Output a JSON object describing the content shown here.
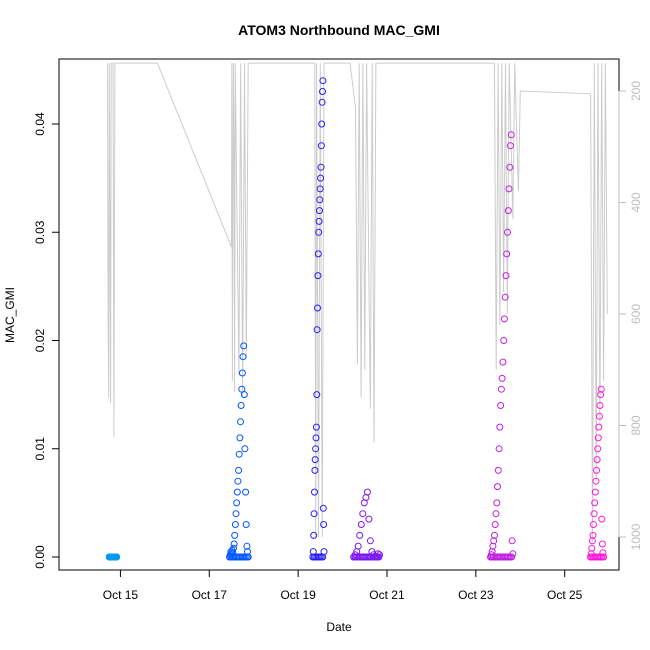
{
  "chart_data": {
    "type": "scatter",
    "title": "ATOM3 Northbound MAC_GMI",
    "xlabel": "Date",
    "ylabel": "MAC_GMI",
    "xlim": [
      "2023-10-14",
      "2023-10-26"
    ],
    "ylim": [
      0,
      0.045
    ],
    "x_ticks": [
      {
        "date": "2023-10-15",
        "label": "Oct 15"
      },
      {
        "date": "2023-10-17",
        "label": "Oct 17"
      },
      {
        "date": "2023-10-19",
        "label": "Oct 19"
      },
      {
        "date": "2023-10-21",
        "label": "Oct 21"
      },
      {
        "date": "2023-10-23",
        "label": "Oct 23"
      },
      {
        "date": "2023-10-25",
        "label": "Oct 25"
      }
    ],
    "y_ticks": [
      {
        "value": 0.0,
        "label": "0.00"
      },
      {
        "value": 0.01,
        "label": "0.01"
      },
      {
        "value": 0.02,
        "label": "0.02"
      },
      {
        "value": 0.03,
        "label": "0.03"
      },
      {
        "value": 0.04,
        "label": "0.04"
      }
    ],
    "secondary_axis": {
      "reversed": true,
      "range": [
        1050,
        150
      ],
      "ticks": [
        {
          "value": 200,
          "label": "200"
        },
        {
          "value": 400,
          "label": "400"
        },
        {
          "value": 600,
          "label": "600"
        },
        {
          "value": 800,
          "label": "800"
        },
        {
          "value": 1000,
          "label": "1000"
        }
      ],
      "color": "#bdbdbd"
    },
    "depth_trace": {
      "color": "#cccccc",
      "points": [
        [
          "2023-10-14 17:00",
          150
        ],
        [
          "2023-10-14 17:20",
          600
        ],
        [
          "2023-10-14 17:40",
          750
        ],
        [
          "2023-10-14 18:00",
          150
        ],
        [
          "2023-10-14 18:40",
          760
        ],
        [
          "2023-10-14 19:00",
          150
        ],
        [
          "2023-10-14 20:00",
          150
        ],
        [
          "2023-10-14 20:30",
          820
        ],
        [
          "2023-10-14 21:00",
          150
        ],
        [
          "2023-10-15 20:00",
          150
        ],
        [
          "2023-10-17 12:00",
          480
        ],
        [
          "2023-10-17 12:10",
          150
        ],
        [
          "2023-10-17 12:30",
          720
        ],
        [
          "2023-10-17 13:00",
          150
        ],
        [
          "2023-10-17 13:20",
          300
        ],
        [
          "2023-10-17 13:40",
          740
        ],
        [
          "2023-10-17 14:00",
          150
        ],
        [
          "2023-10-17 16:00",
          710
        ],
        [
          "2023-10-17 17:00",
          150
        ],
        [
          "2023-10-17 18:00",
          750
        ],
        [
          "2023-10-17 19:00",
          150
        ],
        [
          "2023-10-17 20:00",
          680
        ],
        [
          "2023-10-17 21:00",
          150
        ],
        [
          "2023-10-19 09:00",
          150
        ],
        [
          "2023-10-19 09:30",
          1000
        ],
        [
          "2023-10-19 10:00",
          150
        ],
        [
          "2023-10-19 11:00",
          1000
        ],
        [
          "2023-10-19 12:00",
          150
        ],
        [
          "2023-10-19 13:00",
          1000
        ],
        [
          "2023-10-19 14:00",
          150
        ],
        [
          "2023-10-20 04:00",
          150
        ],
        [
          "2023-10-20 07:00",
          230
        ],
        [
          "2023-10-20 08:00",
          690
        ],
        [
          "2023-10-20 09:00",
          150
        ],
        [
          "2023-10-20 10:00",
          750
        ],
        [
          "2023-10-20 11:00",
          150
        ],
        [
          "2023-10-20 12:00",
          700
        ],
        [
          "2023-10-20 13:00",
          150
        ],
        [
          "2023-10-20 15:00",
          770
        ],
        [
          "2023-10-20 16:00",
          150
        ],
        [
          "2023-10-20 17:00",
          830
        ],
        [
          "2023-10-20 18:00",
          150
        ],
        [
          "2023-10-23 10:00",
          150
        ],
        [
          "2023-10-23 11:00",
          700
        ],
        [
          "2023-10-23 12:00",
          150
        ],
        [
          "2023-10-23 13:00",
          620
        ],
        [
          "2023-10-23 14:00",
          150
        ],
        [
          "2023-10-23 15:00",
          560
        ],
        [
          "2023-10-23 16:00",
          150
        ],
        [
          "2023-10-23 17:00",
          600
        ],
        [
          "2023-10-23 18:00",
          150
        ],
        [
          "2023-10-23 20:00",
          430
        ],
        [
          "2023-10-23 21:00",
          150
        ],
        [
          "2023-10-23 23:00",
          380
        ],
        [
          "2023-10-24 00:00",
          200
        ],
        [
          "2023-10-25 14:00",
          205
        ],
        [
          "2023-10-25 15:00",
          1010
        ],
        [
          "2023-10-25 16:00",
          150
        ],
        [
          "2023-10-25 17:00",
          900
        ],
        [
          "2023-10-25 18:00",
          150
        ],
        [
          "2023-10-25 19:00",
          800
        ],
        [
          "2023-10-25 20:00",
          150
        ],
        [
          "2023-10-25 21:00",
          720
        ],
        [
          "2023-10-25 22:00",
          150
        ],
        [
          "2023-10-25 23:00",
          600
        ]
      ]
    },
    "series": [
      {
        "color": "#0099ee",
        "clusters": [
          {
            "start": "2023-10-14 18:00",
            "end": "2023-10-14 22:00",
            "values": [
              0.0,
              0.0,
              0.0,
              0.0,
              0.0,
              0.0,
              0.0,
              0.0,
              0.0,
              0.0,
              0.0,
              0.0,
              0.0,
              0.0,
              0.0,
              0.0
            ]
          }
        ]
      },
      {
        "color": "#0057ff",
        "clusters": [
          {
            "start": "2023-10-17 11:00",
            "end": "2023-10-17 21:00",
            "values": [
              0.0,
              0.0002,
              0.0005,
              0.0003,
              0.0006,
              0.0004,
              0.0008,
              0.0012,
              0.002,
              0.003,
              0.004,
              0.005,
              0.006,
              0.007,
              0.008,
              0.0095,
              0.011,
              0.0125,
              0.014,
              0.0155,
              0.017,
              0.0185,
              0.0195,
              0.015,
              0.01,
              0.006,
              0.003,
              0.001,
              0.0005,
              0.0
            ]
          }
        ]
      },
      {
        "color": "#2a1ff0",
        "clusters": [
          {
            "start": "2023-10-19 08:00",
            "end": "2023-10-19 14:00",
            "values": [
              0.0,
              0.0005,
              0.002,
              0.004,
              0.006,
              0.008,
              0.009,
              0.01,
              0.011,
              0.012,
              0.015,
              0.021,
              0.023,
              0.026,
              0.028,
              0.03,
              0.031,
              0.032,
              0.033,
              0.034,
              0.035,
              0.036,
              0.038,
              0.04,
              0.042,
              0.043,
              0.044,
              0.0045,
              0.003,
              0.0005
            ]
          }
        ]
      },
      {
        "color": "#7a18f0",
        "clusters": [
          {
            "start": "2023-10-20 06:00",
            "end": "2023-10-20 20:00",
            "values": [
              0.0,
              0.0002,
              0.0005,
              0.001,
              0.002,
              0.003,
              0.004,
              0.005,
              0.0055,
              0.006,
              0.0035,
              0.0015,
              0.0005,
              0.0002,
              0.0,
              0.0,
              0.0003,
              0.0002
            ]
          }
        ]
      },
      {
        "color": "#c020e0",
        "clusters": [
          {
            "start": "2023-10-23 08:00",
            "end": "2023-10-23 20:00",
            "values": [
              0.0,
              0.0002,
              0.0005,
              0.001,
              0.0015,
              0.002,
              0.003,
              0.004,
              0.005,
              0.0065,
              0.008,
              0.01,
              0.012,
              0.014,
              0.0155,
              0.0165,
              0.018,
              0.02,
              0.022,
              0.024,
              0.026,
              0.028,
              0.03,
              0.032,
              0.034,
              0.036,
              0.038,
              0.039,
              0.0015,
              0.0003
            ]
          }
        ]
      },
      {
        "color": "#ff19d9",
        "clusters": [
          {
            "start": "2023-10-25 14:00",
            "end": "2023-10-25 21:00",
            "values": [
              0.0,
              0.0003,
              0.0008,
              0.0015,
              0.002,
              0.003,
              0.004,
              0.005,
              0.006,
              0.007,
              0.008,
              0.009,
              0.01,
              0.011,
              0.012,
              0.013,
              0.014,
              0.015,
              0.0155,
              0.0035,
              0.0012,
              0.0004,
              0.0
            ]
          }
        ]
      }
    ],
    "grid": false,
    "legend": "none"
  }
}
